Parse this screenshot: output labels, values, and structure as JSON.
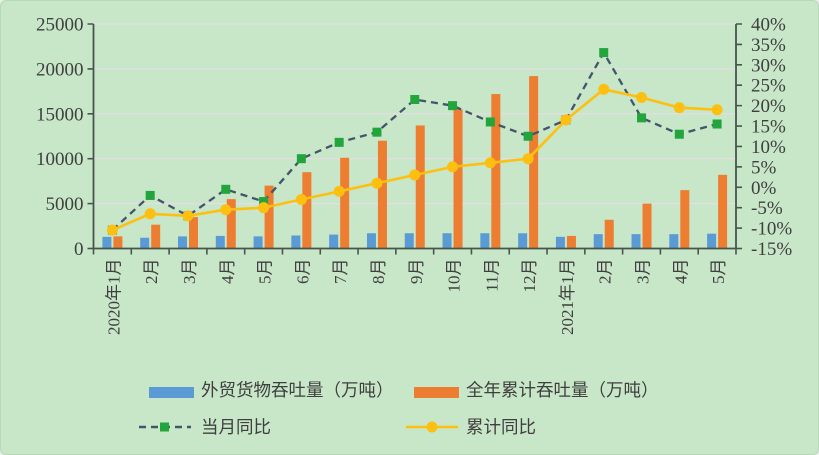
{
  "chart_data": {
    "type": "combo",
    "title": "",
    "grid": true,
    "legend_position": "bottom",
    "categories": [
      "2020年1月",
      "2月",
      "3月",
      "4月",
      "5月",
      "6月",
      "7月",
      "8月",
      "9月",
      "10月",
      "11月",
      "12月",
      "2021年1月",
      "2月",
      "3月",
      "4月",
      "5月"
    ],
    "series": [
      {
        "name": "外贸货物吞吐量（万吨）",
        "type": "bar",
        "axis": "left",
        "color": "#5b9bd5",
        "values": [
          1300,
          1200,
          1350,
          1400,
          1350,
          1450,
          1550,
          1700,
          1700,
          1700,
          1700,
          1700,
          1300,
          1600,
          1600,
          1600,
          1650
        ]
      },
      {
        "name": "全年累计吞吐量（万吨）",
        "type": "bar",
        "axis": "left",
        "color": "#ed7d31",
        "values": [
          1350,
          2650,
          3500,
          5500,
          7000,
          8500,
          10100,
          12000,
          13700,
          15500,
          17200,
          19200,
          1400,
          3200,
          5000,
          6500,
          8200
        ]
      },
      {
        "name": "当月同比",
        "type": "line",
        "style": "dashed",
        "axis": "right",
        "color": "#44546a",
        "marker": "square",
        "marker_color": "#22a53d",
        "values": [
          -10.5,
          -2,
          -7,
          -0.5,
          -3.5,
          7,
          11,
          13.5,
          21.5,
          20,
          16,
          12.5,
          16.5,
          33,
          17,
          13,
          15.5
        ]
      },
      {
        "name": "累计同比",
        "type": "line",
        "style": "solid",
        "axis": "right",
        "color": "#fdc010",
        "marker": "circle",
        "marker_color": "#fdc010",
        "values": [
          -10.5,
          -6.5,
          -7,
          -5.5,
          -5,
          -3,
          -1,
          1,
          3,
          5,
          6,
          7,
          16.5,
          24,
          22,
          19.5,
          19
        ]
      }
    ],
    "left_axis": {
      "range": [
        0,
        25000
      ],
      "step": 5000,
      "tick_labels": [
        "0",
        "5000",
        "10000",
        "15000",
        "20000",
        "25000"
      ]
    },
    "right_axis": {
      "range": [
        -15,
        40
      ],
      "step": 5,
      "tick_labels": [
        "-15%",
        "-10%",
        "-5%",
        "0%",
        "5%",
        "10%",
        "15%",
        "20%",
        "25%",
        "30%",
        "35%",
        "40%"
      ]
    }
  },
  "colors": {
    "background": "#c8e6c8",
    "gridline": "#e6dee6",
    "axis": "#47564c",
    "text": "#3f3f3f"
  }
}
